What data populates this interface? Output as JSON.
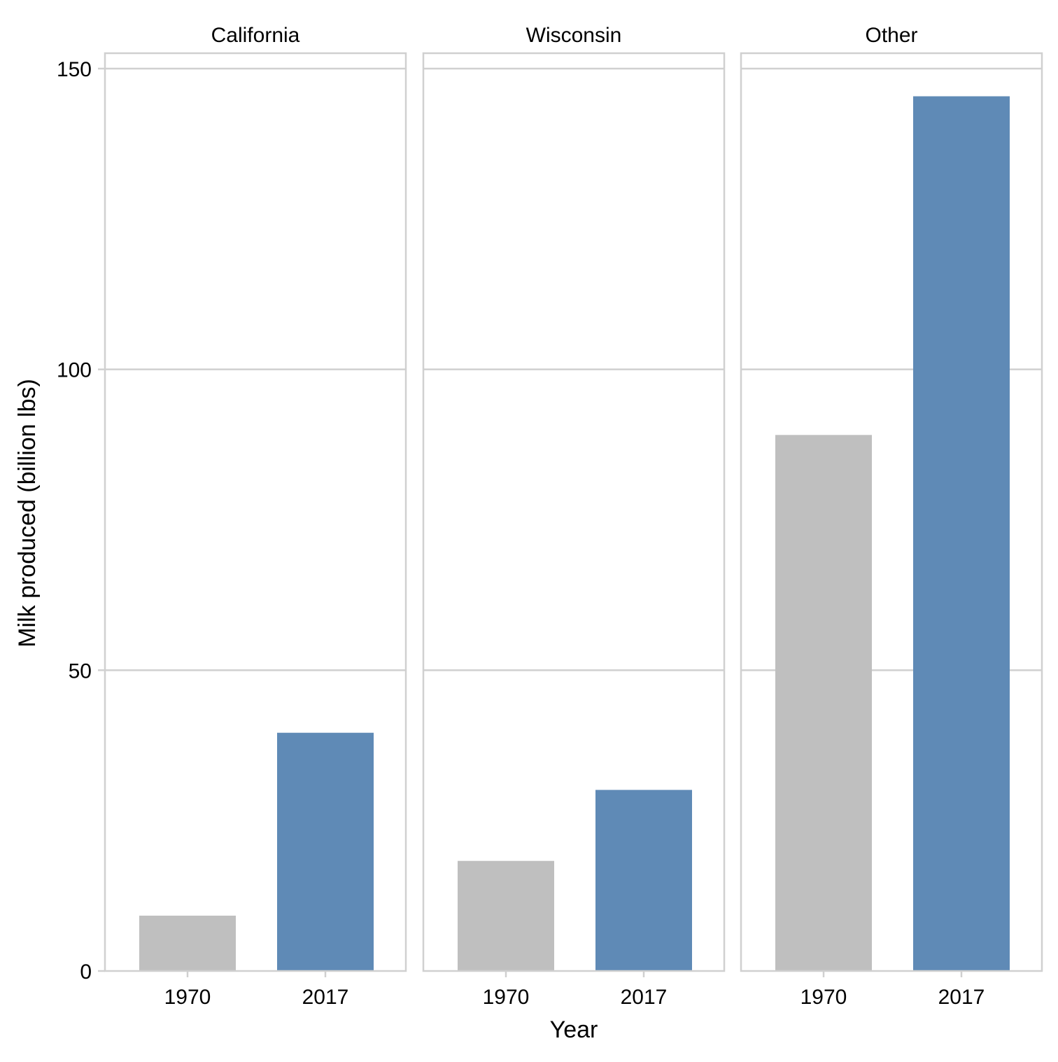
{
  "chart_data": {
    "type": "bar",
    "facets": [
      "California",
      "Wisconsin",
      "Other"
    ],
    "categories": [
      "1970",
      "2017"
    ],
    "values": [
      [
        9.2,
        39.6
      ],
      [
        18.3,
        30.1
      ],
      [
        89.1,
        145.4
      ]
    ],
    "xlabel": "Year",
    "ylabel": "Milk produced (billion lbs)",
    "ylim": [
      0,
      150
    ],
    "yticks": [
      0,
      50,
      100,
      150
    ],
    "grid": "horizontal",
    "colors": {
      "1970": "#bfbfbf",
      "2017": "#5f8ab6"
    }
  }
}
